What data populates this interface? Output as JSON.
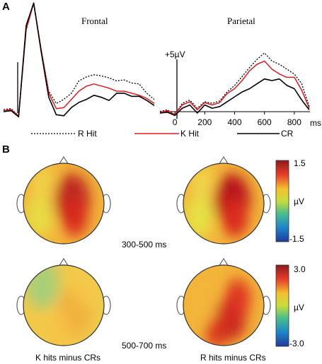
{
  "panel_a": {
    "letter": "A",
    "legend": [
      {
        "label": "R Hit",
        "color": "#000000",
        "dash": "2,2"
      },
      {
        "label": "K Hit",
        "color": "#e31a1c",
        "dash": ""
      },
      {
        "label": "CR",
        "color": "#000000",
        "dash": ""
      }
    ]
  },
  "panel_b": {
    "letter": "B",
    "windows": [
      "300-500 ms",
      "500-700 ms"
    ],
    "column_labels": [
      "K hits minus CRs",
      "R hits minus CRs"
    ],
    "colorbars": [
      {
        "top_label": "1.5",
        "mid_label": "µV",
        "bottom_label": "-1.5",
        "range": [
          -1.5,
          1.5
        ]
      },
      {
        "top_label": "3.0",
        "mid_label": "µV",
        "bottom_label": "-3.0",
        "range": [
          -3.0,
          3.0
        ]
      }
    ],
    "maps": [
      {
        "condition": "K hits minus CRs",
        "window": "300-500 ms",
        "peak": "right-central",
        "intensity": 0.78
      },
      {
        "condition": "R hits minus CRs",
        "window": "300-500 ms",
        "peak": "right-central",
        "intensity": 0.95
      },
      {
        "condition": "K hits minus CRs",
        "window": "500-700 ms",
        "peak": "diffuse",
        "intensity": 0.62
      },
      {
        "condition": "R hits minus CRs",
        "window": "500-700 ms",
        "peak": "right-posterior",
        "intensity": 0.82
      }
    ]
  },
  "chart_data": [
    {
      "type": "line",
      "title": "Frontal",
      "y_scale_label": "",
      "x": [
        -100,
        -50,
        0,
        50,
        100,
        150,
        200,
        250,
        300,
        350,
        400,
        450,
        500,
        550,
        600,
        650,
        700,
        750,
        800,
        850,
        900
      ],
      "series": [
        {
          "name": "R Hit",
          "values": [
            0.2,
            0.3,
            -0.4,
            8.5,
            10.5,
            6.0,
            2.0,
            0.8,
            1.2,
            1.8,
            3.0,
            3.4,
            3.6,
            3.5,
            3.3,
            3.0,
            3.1,
            2.8,
            2.7,
            1.8,
            1.2
          ]
        },
        {
          "name": "K Hit",
          "values": [
            0.1,
            0.2,
            -0.4,
            8.0,
            10.6,
            6.0,
            1.8,
            0.3,
            0.4,
            1.2,
            2.0,
            2.5,
            2.7,
            2.5,
            2.3,
            2.0,
            2.0,
            1.8,
            1.6,
            1.3,
            0.8
          ]
        },
        {
          "name": "CR",
          "values": [
            0.0,
            0.1,
            -0.5,
            8.4,
            10.6,
            5.8,
            1.4,
            -0.3,
            -0.4,
            0.4,
            0.9,
            1.2,
            1.6,
            1.4,
            1.1,
            1.8,
            1.8,
            1.5,
            1.5,
            1.1,
            0.6
          ]
        }
      ]
    },
    {
      "type": "line",
      "title": "Parietal",
      "y_scale_label": "+5µV",
      "xlabel": "ms",
      "xticks": [
        0,
        200,
        400,
        600,
        800
      ],
      "x": [
        -100,
        -50,
        0,
        50,
        100,
        150,
        200,
        250,
        300,
        350,
        400,
        450,
        500,
        550,
        600,
        650,
        700,
        750,
        800,
        850,
        900
      ],
      "series": [
        {
          "name": "R Hit",
          "values": [
            0.2,
            0.4,
            -0.2,
            1.2,
            1.6,
            0.6,
            1.4,
            1.2,
            1.5,
            2.6,
            3.4,
            4.5,
            5.6,
            6.6,
            7.4,
            6.4,
            6.0,
            5.4,
            4.8,
            3.6,
            0.8
          ]
        },
        {
          "name": "K Hit",
          "values": [
            0.1,
            0.3,
            -0.2,
            1.0,
            1.4,
            0.4,
            1.3,
            1.0,
            1.3,
            2.4,
            3.0,
            4.0,
            5.2,
            6.0,
            6.4,
            5.4,
            4.8,
            4.4,
            4.4,
            2.8,
            0.6
          ]
        },
        {
          "name": "CR",
          "values": [
            0.0,
            0.1,
            -0.3,
            0.6,
            1.0,
            0.0,
            1.0,
            0.6,
            0.8,
            1.4,
            2.0,
            2.6,
            3.0,
            3.6,
            4.2,
            4.0,
            4.2,
            3.4,
            3.0,
            1.6,
            0.4
          ]
        }
      ]
    }
  ]
}
